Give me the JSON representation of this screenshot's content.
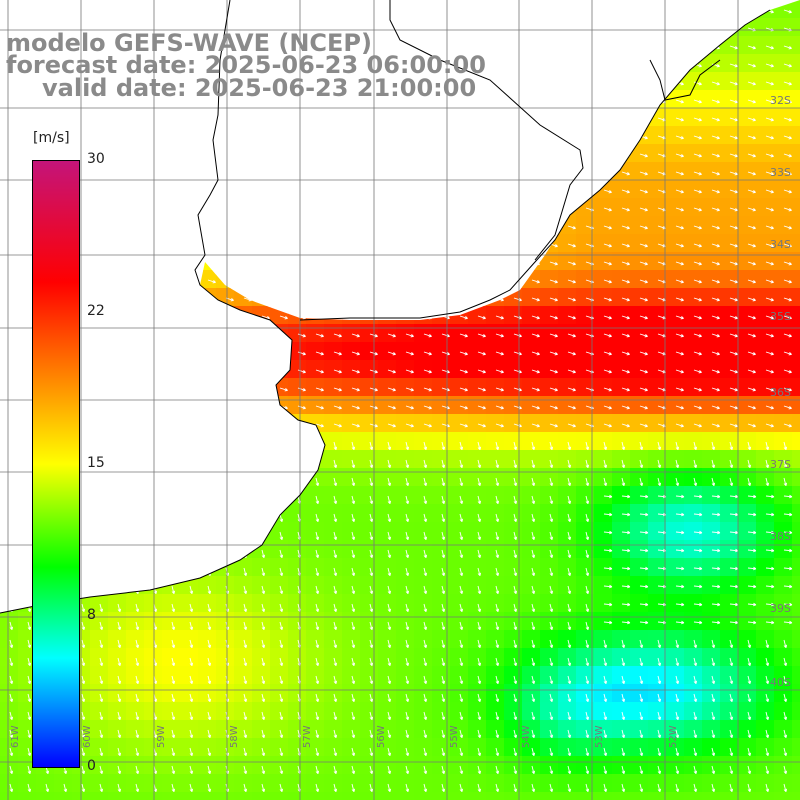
{
  "title": {
    "model": "modelo GEFS-WAVE (NCEP)",
    "forecast": "forecast date: 2025-06-23 06:00:00",
    "valid": "valid date: 2025-06-23 21:00:00"
  },
  "colorbar": {
    "unit": "[m/s]",
    "ticks": [
      "30",
      "22",
      "15",
      "8",
      "0"
    ],
    "colors": [
      "#c4147a",
      "#ff0000",
      "#ff7f00",
      "#ffff00",
      "#00ff00",
      "#00ffff",
      "#0000ff"
    ]
  },
  "axes": {
    "lat_labels": [
      "32S",
      "33S",
      "34S",
      "35S",
      "36S",
      "37S",
      "38S",
      "39S",
      "40S"
    ],
    "lon_labels": [
      "61W",
      "60W",
      "59W",
      "58W",
      "57W",
      "56W",
      "55W",
      "54W",
      "53W",
      "52W"
    ]
  },
  "map_data": {
    "field": "wind speed",
    "units": "m/s",
    "range": [
      0,
      30
    ],
    "lon_range": [
      -61.2,
      -50.3
    ],
    "lat_range": [
      -40.8,
      -31.4
    ],
    "colors": {
      "land": "#ffffff",
      "grid": "#777777",
      "coast": "#000000",
      "arrow": "#ffffff"
    }
  }
}
